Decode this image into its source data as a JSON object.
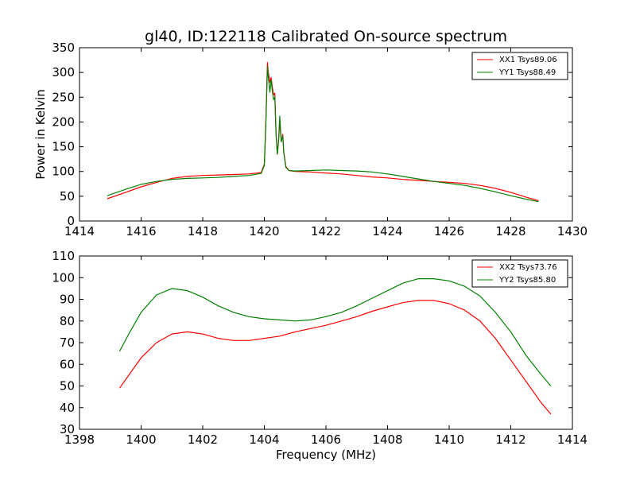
{
  "chart_data": [
    {
      "type": "line",
      "title": "gl40, ID:122118 Calibrated On-source spectrum",
      "xlabel": "",
      "ylabel": "Power in Kelvin",
      "xlim": [
        1414,
        1430
      ],
      "ylim": [
        0,
        350
      ],
      "xticks": [
        1414,
        1416,
        1418,
        1420,
        1422,
        1424,
        1426,
        1428,
        1430
      ],
      "yticks": [
        0,
        50,
        100,
        150,
        200,
        250,
        300,
        350
      ],
      "legend_position": "top-right",
      "series": [
        {
          "name": "XX1 Tsys89.06",
          "color": "#ff0000",
          "x": [
            1414.9,
            1415.5,
            1416.0,
            1416.5,
            1417.0,
            1417.5,
            1418.0,
            1418.5,
            1419.0,
            1419.5,
            1419.9,
            1420.0,
            1420.05,
            1420.1,
            1420.13,
            1420.18,
            1420.22,
            1420.26,
            1420.3,
            1420.34,
            1420.38,
            1420.42,
            1420.46,
            1420.5,
            1420.55,
            1420.6,
            1420.63,
            1420.7,
            1420.8,
            1421.0,
            1421.5,
            1422.0,
            1422.5,
            1423.0,
            1423.5,
            1424.0,
            1424.5,
            1425.0,
            1425.5,
            1426.0,
            1426.5,
            1427.0,
            1427.5,
            1428.0,
            1428.5,
            1428.9
          ],
          "y": [
            45,
            58,
            69,
            78,
            86,
            90,
            92,
            93,
            94,
            95,
            98,
            115,
            200,
            320,
            300,
            280,
            290,
            270,
            255,
            258,
            180,
            135,
            160,
            200,
            160,
            175,
            140,
            110,
            102,
            100,
            99,
            97,
            95,
            92,
            89,
            87,
            84,
            82,
            80,
            78,
            76,
            72,
            66,
            58,
            48,
            41
          ]
        },
        {
          "name": "YY1 Tsys88.49",
          "color": "#008000",
          "x": [
            1414.9,
            1415.5,
            1416.0,
            1416.5,
            1417.0,
            1417.5,
            1418.0,
            1418.5,
            1419.0,
            1419.5,
            1419.9,
            1420.0,
            1420.05,
            1420.1,
            1420.13,
            1420.18,
            1420.22,
            1420.26,
            1420.3,
            1420.34,
            1420.38,
            1420.42,
            1420.46,
            1420.5,
            1420.55,
            1420.6,
            1420.63,
            1420.7,
            1420.8,
            1421.0,
            1421.5,
            1422.0,
            1422.5,
            1423.0,
            1423.5,
            1424.0,
            1424.5,
            1425.0,
            1425.5,
            1426.0,
            1426.5,
            1427.0,
            1427.5,
            1428.0,
            1428.5,
            1428.9
          ],
          "y": [
            51,
            64,
            74,
            80,
            84,
            86,
            87,
            88,
            90,
            92,
            96,
            112,
            195,
            312,
            290,
            260,
            285,
            262,
            245,
            250,
            175,
            135,
            158,
            212,
            160,
            172,
            138,
            108,
            102,
            101,
            102,
            103,
            102,
            101,
            99,
            95,
            90,
            85,
            80,
            76,
            72,
            66,
            59,
            51,
            44,
            39
          ]
        }
      ]
    },
    {
      "type": "line",
      "title": "",
      "xlabel": "Frequency (MHz)",
      "ylabel": "",
      "xlim": [
        1398,
        1414
      ],
      "ylim": [
        30,
        110
      ],
      "xticks": [
        1398,
        1400,
        1402,
        1404,
        1406,
        1408,
        1410,
        1412,
        1414
      ],
      "yticks": [
        30,
        40,
        50,
        60,
        70,
        80,
        90,
        100,
        110
      ],
      "legend_position": "top-right",
      "series": [
        {
          "name": "XX2 Tsys73.76",
          "color": "#ff0000",
          "x": [
            1399.3,
            1399.6,
            1400.0,
            1400.5,
            1401.0,
            1401.5,
            1402.0,
            1402.5,
            1403.0,
            1403.5,
            1404.0,
            1404.5,
            1405.0,
            1405.5,
            1406.0,
            1406.5,
            1407.0,
            1407.5,
            1408.0,
            1408.5,
            1409.0,
            1409.5,
            1410.0,
            1410.5,
            1411.0,
            1411.5,
            1412.0,
            1412.5,
            1413.0,
            1413.3
          ],
          "y": [
            49,
            55,
            63,
            70,
            74,
            75,
            74,
            72,
            71,
            71,
            72,
            73,
            75,
            76.5,
            78,
            80,
            82,
            84.5,
            86.5,
            88.5,
            89.5,
            89.5,
            88,
            85,
            80,
            72,
            62,
            52,
            42,
            37
          ]
        },
        {
          "name": "YY2 Tsys85.80",
          "color": "#008000",
          "x": [
            1399.3,
            1399.6,
            1400.0,
            1400.5,
            1401.0,
            1401.5,
            1402.0,
            1402.5,
            1403.0,
            1403.5,
            1404.0,
            1404.5,
            1405.0,
            1405.5,
            1406.0,
            1406.5,
            1407.0,
            1407.5,
            1408.0,
            1408.5,
            1409.0,
            1409.5,
            1410.0,
            1410.5,
            1411.0,
            1411.5,
            1412.0,
            1412.5,
            1413.0,
            1413.3
          ],
          "y": [
            66,
            74,
            84,
            92,
            95,
            94,
            91,
            87,
            84,
            82,
            81,
            80.5,
            80,
            80.5,
            82,
            84,
            87,
            90.5,
            94,
            97.5,
            99.5,
            99.5,
            98.5,
            96,
            91.5,
            84,
            75,
            64,
            55,
            50
          ]
        }
      ]
    }
  ]
}
